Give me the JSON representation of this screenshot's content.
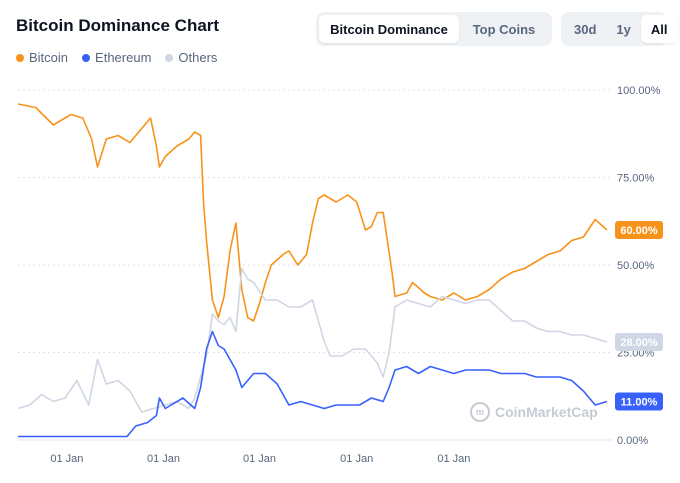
{
  "header": {
    "title": "Bitcoin Dominance Chart"
  },
  "tabs": [
    {
      "label": "Bitcoin Dominance",
      "active": true
    },
    {
      "label": "Top Coins",
      "active": false
    }
  ],
  "ranges": [
    {
      "label": "30d",
      "active": false
    },
    {
      "label": "1y",
      "active": false
    },
    {
      "label": "All",
      "active": true
    }
  ],
  "watermark": "CoinMarketCap",
  "colors": {
    "bitcoin": "#f7931a",
    "ethereum": "#3861fb",
    "others": "#cfd6e4",
    "grid": "#dfe3ea"
  },
  "chart_data": {
    "type": "line",
    "ylim": [
      0,
      100
    ],
    "yticks": [
      {
        "value": 100,
        "label": "100.00%"
      },
      {
        "value": 75,
        "label": "75.00%"
      },
      {
        "value": 50,
        "label": "50.00%"
      },
      {
        "value": 25,
        "label": "25.00%"
      },
      {
        "value": 0,
        "label": "0.00%"
      }
    ],
    "xticks": [
      {
        "t": 0.083,
        "label": "01 Jan"
      },
      {
        "t": 0.247,
        "label": "01 Jan"
      },
      {
        "t": 0.41,
        "label": "01 Jan"
      },
      {
        "t": 0.575,
        "label": "01 Jan"
      },
      {
        "t": 0.74,
        "label": "01 Jan"
      }
    ],
    "legend_position": "top-left",
    "series": [
      {
        "name": "Bitcoin",
        "color": "#f7931a",
        "last_label": "60.00%",
        "points": [
          [
            0,
            96
          ],
          [
            0.03,
            95
          ],
          [
            0.06,
            90
          ],
          [
            0.09,
            93
          ],
          [
            0.11,
            92
          ],
          [
            0.125,
            86
          ],
          [
            0.135,
            78
          ],
          [
            0.15,
            86
          ],
          [
            0.17,
            87
          ],
          [
            0.19,
            85
          ],
          [
            0.21,
            89
          ],
          [
            0.225,
            92
          ],
          [
            0.235,
            84
          ],
          [
            0.24,
            78
          ],
          [
            0.25,
            81
          ],
          [
            0.27,
            84
          ],
          [
            0.29,
            86
          ],
          [
            0.3,
            88
          ],
          [
            0.31,
            87
          ],
          [
            0.315,
            68
          ],
          [
            0.32,
            57
          ],
          [
            0.33,
            40
          ],
          [
            0.34,
            35
          ],
          [
            0.35,
            41
          ],
          [
            0.36,
            54
          ],
          [
            0.37,
            62
          ],
          [
            0.38,
            43
          ],
          [
            0.39,
            35
          ],
          [
            0.4,
            34
          ],
          [
            0.41,
            39
          ],
          [
            0.42,
            45
          ],
          [
            0.43,
            50
          ],
          [
            0.45,
            53
          ],
          [
            0.46,
            54
          ],
          [
            0.475,
            50
          ],
          [
            0.49,
            53
          ],
          [
            0.5,
            62
          ],
          [
            0.51,
            69
          ],
          [
            0.52,
            70
          ],
          [
            0.54,
            68
          ],
          [
            0.56,
            70
          ],
          [
            0.575,
            68
          ],
          [
            0.59,
            60
          ],
          [
            0.6,
            61
          ],
          [
            0.61,
            65
          ],
          [
            0.62,
            65
          ],
          [
            0.635,
            48
          ],
          [
            0.64,
            41
          ],
          [
            0.66,
            42
          ],
          [
            0.67,
            45
          ],
          [
            0.69,
            42
          ],
          [
            0.7,
            41
          ],
          [
            0.72,
            40
          ],
          [
            0.74,
            42
          ],
          [
            0.76,
            40
          ],
          [
            0.78,
            41
          ],
          [
            0.8,
            43
          ],
          [
            0.82,
            46
          ],
          [
            0.84,
            48
          ],
          [
            0.86,
            49
          ],
          [
            0.88,
            51
          ],
          [
            0.9,
            53
          ],
          [
            0.92,
            54
          ],
          [
            0.94,
            57
          ],
          [
            0.96,
            58
          ],
          [
            0.98,
            63
          ],
          [
            1,
            60
          ]
        ]
      },
      {
        "name": "Others",
        "color": "#cfd6e4",
        "last_label": "28.00%",
        "points": [
          [
            0,
            9
          ],
          [
            0.02,
            10
          ],
          [
            0.04,
            13
          ],
          [
            0.06,
            11
          ],
          [
            0.08,
            12
          ],
          [
            0.1,
            17
          ],
          [
            0.12,
            10
          ],
          [
            0.135,
            23
          ],
          [
            0.15,
            16
          ],
          [
            0.17,
            17
          ],
          [
            0.19,
            14
          ],
          [
            0.21,
            8
          ],
          [
            0.23,
            9
          ],
          [
            0.25,
            10
          ],
          [
            0.27,
            11
          ],
          [
            0.29,
            9
          ],
          [
            0.3,
            12
          ],
          [
            0.31,
            18
          ],
          [
            0.32,
            24
          ],
          [
            0.33,
            36
          ],
          [
            0.34,
            34
          ],
          [
            0.35,
            33
          ],
          [
            0.36,
            35
          ],
          [
            0.37,
            31
          ],
          [
            0.38,
            49
          ],
          [
            0.39,
            46
          ],
          [
            0.4,
            45
          ],
          [
            0.42,
            40
          ],
          [
            0.44,
            40
          ],
          [
            0.46,
            38
          ],
          [
            0.48,
            38
          ],
          [
            0.5,
            40
          ],
          [
            0.51,
            34
          ],
          [
            0.52,
            28
          ],
          [
            0.53,
            24
          ],
          [
            0.55,
            24
          ],
          [
            0.57,
            26
          ],
          [
            0.59,
            26
          ],
          [
            0.61,
            22
          ],
          [
            0.62,
            18
          ],
          [
            0.63,
            25
          ],
          [
            0.64,
            38
          ],
          [
            0.66,
            40
          ],
          [
            0.68,
            39
          ],
          [
            0.7,
            38
          ],
          [
            0.72,
            41
          ],
          [
            0.74,
            40
          ],
          [
            0.76,
            39
          ],
          [
            0.78,
            40
          ],
          [
            0.8,
            40
          ],
          [
            0.82,
            37
          ],
          [
            0.84,
            34
          ],
          [
            0.86,
            34
          ],
          [
            0.88,
            32
          ],
          [
            0.9,
            31
          ],
          [
            0.92,
            31
          ],
          [
            0.94,
            30
          ],
          [
            0.96,
            30
          ],
          [
            0.98,
            29
          ],
          [
            1,
            28
          ]
        ]
      },
      {
        "name": "Ethereum",
        "color": "#3861fb",
        "last_label": "11.00%",
        "points": [
          [
            0,
            1
          ],
          [
            0.1,
            1
          ],
          [
            0.17,
            1
          ],
          [
            0.185,
            1
          ],
          [
            0.2,
            4
          ],
          [
            0.22,
            5
          ],
          [
            0.235,
            7
          ],
          [
            0.24,
            12
          ],
          [
            0.25,
            9
          ],
          [
            0.26,
            10
          ],
          [
            0.28,
            12
          ],
          [
            0.3,
            9
          ],
          [
            0.31,
            15
          ],
          [
            0.32,
            26
          ],
          [
            0.33,
            31
          ],
          [
            0.34,
            27
          ],
          [
            0.35,
            26
          ],
          [
            0.36,
            23
          ],
          [
            0.37,
            20
          ],
          [
            0.38,
            15
          ],
          [
            0.39,
            17
          ],
          [
            0.4,
            19
          ],
          [
            0.42,
            19
          ],
          [
            0.44,
            16
          ],
          [
            0.46,
            10
          ],
          [
            0.48,
            11
          ],
          [
            0.5,
            10
          ],
          [
            0.52,
            9
          ],
          [
            0.54,
            10
          ],
          [
            0.56,
            10
          ],
          [
            0.58,
            10
          ],
          [
            0.6,
            12
          ],
          [
            0.62,
            11
          ],
          [
            0.63,
            15
          ],
          [
            0.64,
            20
          ],
          [
            0.66,
            21
          ],
          [
            0.68,
            19
          ],
          [
            0.7,
            21
          ],
          [
            0.72,
            20
          ],
          [
            0.74,
            19
          ],
          [
            0.76,
            20
          ],
          [
            0.78,
            20
          ],
          [
            0.8,
            20
          ],
          [
            0.82,
            19
          ],
          [
            0.84,
            19
          ],
          [
            0.86,
            19
          ],
          [
            0.88,
            18
          ],
          [
            0.9,
            18
          ],
          [
            0.92,
            18
          ],
          [
            0.94,
            17
          ],
          [
            0.96,
            14
          ],
          [
            0.98,
            10
          ],
          [
            1,
            11
          ]
        ]
      }
    ]
  }
}
